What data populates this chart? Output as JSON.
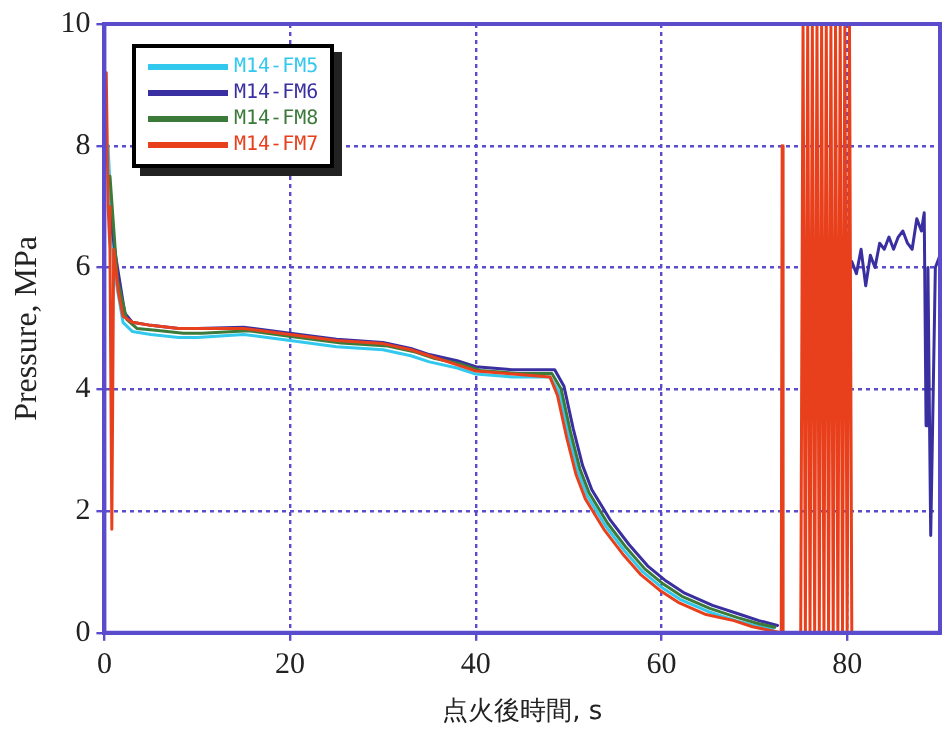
{
  "chart_data": {
    "type": "line",
    "xlabel": "点火後時間, s",
    "ylabel": "Pressure, MPa",
    "xlim": [
      0,
      90
    ],
    "xticks": [
      0,
      20,
      40,
      60,
      80
    ],
    "ylim": [
      0,
      10
    ],
    "yticks": [
      0,
      2,
      4,
      6,
      8,
      10
    ],
    "grid": true,
    "legend": "top left",
    "marker": "none",
    "line_style": "solid",
    "series": [
      {
        "name": "M14-FM5",
        "color": "#33c8ee",
        "x": [
          0.4,
          1,
          2,
          3,
          5,
          8,
          10,
          15,
          20,
          25,
          30,
          33,
          35,
          38,
          40,
          44,
          48,
          49,
          50,
          51,
          52,
          54,
          56,
          58,
          60,
          62,
          65,
          68,
          70,
          72
        ],
        "values": [
          8,
          6,
          5.1,
          4.95,
          4.9,
          4.85,
          4.85,
          4.9,
          4.8,
          4.7,
          4.65,
          4.55,
          4.45,
          4.35,
          4.25,
          4.2,
          4.2,
          3.95,
          3.25,
          2.65,
          2.25,
          1.75,
          1.35,
          1,
          0.75,
          0.55,
          0.35,
          0.2,
          0.12,
          0.06
        ]
      },
      {
        "name": "M14-FM6",
        "color": "#3a2fa0",
        "x": [
          0.5,
          1.2,
          2.2,
          3,
          5,
          8,
          10,
          15,
          20,
          25,
          30,
          33,
          35,
          38,
          40,
          44,
          48.5,
          49.5,
          50.5,
          51.5,
          52.5,
          54.5,
          56.5,
          58.5,
          60.5,
          62.5,
          65.5,
          68.5,
          70.5,
          72.5,
          76,
          80.5,
          81,
          81.5,
          82,
          82.5,
          83,
          83.5,
          84,
          84.5,
          85,
          85.5,
          86,
          86.5,
          87,
          87.5,
          88,
          88.3,
          88.5,
          88.7,
          89,
          89.5,
          90
        ],
        "values": [
          7,
          6.2,
          5.25,
          5.1,
          5.05,
          5,
          5,
          5.02,
          4.92,
          4.82,
          4.77,
          4.67,
          4.57,
          4.47,
          4.37,
          4.32,
          4.32,
          4.05,
          3.35,
          2.75,
          2.35,
          1.85,
          1.45,
          1.1,
          0.85,
          0.65,
          0.45,
          0.3,
          0.2,
          0.12,
          null,
          6.1,
          5.9,
          6.3,
          5.7,
          6.2,
          6,
          6.4,
          6.3,
          6.5,
          6.3,
          6.5,
          6.6,
          6.4,
          6.3,
          6.8,
          6.6,
          6.9,
          3.4,
          6,
          1.6,
          6,
          6.2
        ]
      },
      {
        "name": "M14-FM8",
        "color": "#3c7a3a",
        "x": [
          0.6,
          1.4,
          2.4,
          3.5,
          5.5,
          8.5,
          10.5,
          15.5,
          20.5,
          25.5,
          30.5,
          33.5,
          35.5,
          38.5,
          40.5,
          44.5,
          48.2,
          49.2,
          50.2,
          51.2,
          52.2,
          54.2,
          56.2,
          58.2,
          60.2,
          62.2,
          65.2,
          68.2,
          70.2,
          72.2
        ],
        "values": [
          7.5,
          5.8,
          5.15,
          5,
          4.97,
          4.92,
          4.92,
          4.96,
          4.86,
          4.76,
          4.71,
          4.61,
          4.51,
          4.41,
          4.31,
          4.26,
          4.26,
          4,
          3.3,
          2.7,
          2.3,
          1.8,
          1.4,
          1.05,
          0.8,
          0.6,
          0.4,
          0.25,
          0.16,
          0.09
        ]
      },
      {
        "name": "M14-FM7",
        "color": "#e8401c",
        "x": [
          0.2,
          0.4,
          0.6,
          0.8,
          1,
          1.5,
          2,
          3,
          5,
          8,
          10,
          15,
          20,
          25,
          30,
          33,
          35,
          38,
          40,
          44,
          48,
          48.8,
          49.8,
          50.8,
          51.8,
          53.8,
          55.8,
          57.8,
          59.8,
          61.8,
          64.8,
          67.8,
          69.8,
          72.9,
          73,
          73.1,
          75,
          75.25,
          75.5,
          75.75,
          76,
          76.25,
          76.5,
          76.75,
          77,
          77.25,
          77.5,
          77.75,
          78,
          78.25,
          78.5,
          78.75,
          79,
          79.25,
          79.5,
          79.75,
          80,
          80.25,
          80.5
        ],
        "values": [
          9.2,
          7,
          6.3,
          1.7,
          6.3,
          5.6,
          5.2,
          5.1,
          5.05,
          5,
          5,
          5,
          4.9,
          4.8,
          4.75,
          4.65,
          4.55,
          4.4,
          4.3,
          4.25,
          4.2,
          3.9,
          3.2,
          2.6,
          2.2,
          1.7,
          1.3,
          0.95,
          0.7,
          0.5,
          0.3,
          0.2,
          0.1,
          0,
          8,
          0,
          0,
          10,
          0,
          10,
          0,
          10,
          0,
          10,
          0,
          10,
          0,
          10,
          0,
          10,
          0,
          10,
          0,
          10,
          0,
          10,
          0,
          10,
          0
        ]
      }
    ]
  }
}
